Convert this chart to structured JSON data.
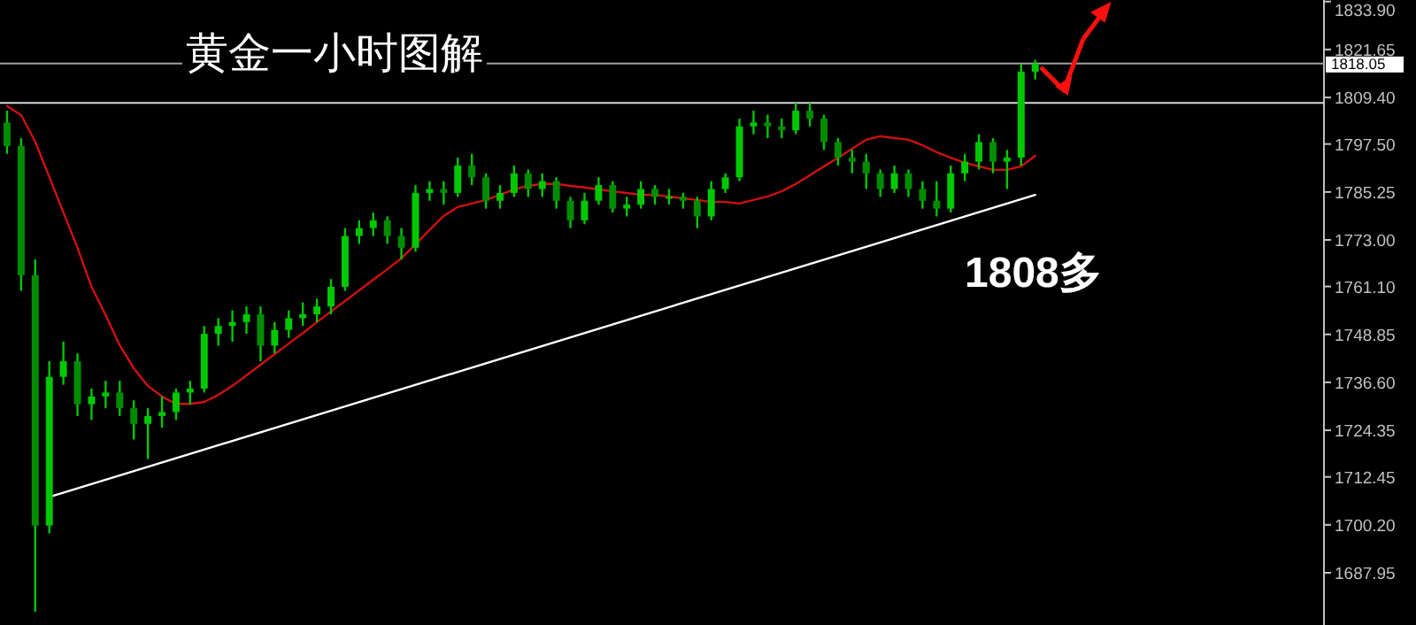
{
  "chart_data": {
    "type": "candlestick",
    "title": "黄金一小时图解",
    "annotations": [
      "1808多"
    ],
    "categories": [
      null,
      null,
      null,
      null,
      null,
      null,
      null,
      null,
      null,
      null,
      null,
      null,
      null,
      null,
      null,
      null,
      null,
      null,
      null,
      null,
      null,
      null,
      null,
      null,
      null,
      null,
      null,
      null,
      null,
      null,
      null,
      null,
      null,
      null,
      null,
      null,
      null,
      null,
      null,
      null,
      null,
      null,
      null,
      null,
      null,
      null,
      null,
      null,
      null,
      null,
      null,
      null,
      null,
      null,
      null,
      null,
      null,
      null,
      null,
      null,
      null,
      null,
      null,
      null,
      null,
      null,
      null,
      null,
      null,
      null,
      null,
      null,
      null,
      null
    ],
    "color": "#00c800",
    "colors": [
      "#008c00",
      "#008c00",
      "#008c00",
      "#00c800",
      "#00c800",
      "#008c00",
      "#00c800",
      "#00c800",
      "#008c00",
      "#008c00",
      "#00c800",
      "#00c800",
      "#00c800",
      "#00c800",
      "#00c800",
      "#00c800",
      "#00c800",
      "#00c800",
      "#008c00",
      "#00c800",
      "#00c800",
      "#00c800",
      "#00c800",
      "#00c800",
      "#00c800",
      "#00c800",
      "#00c800",
      "#008c00",
      "#008c00",
      "#00c800",
      "#00c800",
      "#008c00",
      "#00c800",
      "#008c00",
      "#008c00",
      "#00c800",
      "#00c800",
      "#008c00",
      "#00c800",
      "#008c00",
      "#008c00",
      "#00c800",
      "#00c800",
      "#008c00",
      "#00c800",
      "#00c800",
      "#008c00",
      "#00c800",
      "#008c00",
      "#008c00",
      "#00c800",
      "#00c800",
      "#00c800",
      "#00c800",
      "#008c00",
      "#008c00",
      "#00c800",
      "#008c00",
      "#008c00",
      "#008c00",
      "#008c00",
      "#008c00",
      "#008c00",
      "#00c800",
      "#008c00",
      "#008c00",
      "#008c00",
      "#00c800",
      "#00c800",
      "#00c800",
      "#008c00",
      "#00c800",
      "#00c800",
      "#00c800"
    ],
    "ohlc": [
      [
        1803,
        1806,
        1795,
        1797
      ],
      [
        1797,
        1799,
        1760,
        1764
      ],
      [
        1764,
        1768,
        1678,
        1700
      ],
      [
        1700,
        1742,
        1698,
        1738
      ],
      [
        1738,
        1747,
        1736,
        1742
      ],
      [
        1742,
        1744,
        1728,
        1731
      ],
      [
        1731,
        1735,
        1727,
        1733
      ],
      [
        1733,
        1737,
        1730,
        1734
      ],
      [
        1734,
        1737,
        1728,
        1730
      ],
      [
        1730,
        1732,
        1722,
        1726
      ],
      [
        1726,
        1730,
        1717,
        1728
      ],
      [
        1728,
        1733,
        1725,
        1729
      ],
      [
        1729,
        1735,
        1727,
        1734
      ],
      [
        1734,
        1737,
        1731,
        1735
      ],
      [
        1735,
        1751,
        1734,
        1749
      ],
      [
        1749,
        1753,
        1746,
        1751
      ],
      [
        1751,
        1755,
        1747,
        1752
      ],
      [
        1752,
        1756,
        1749,
        1754
      ],
      [
        1754,
        1756,
        1742,
        1746
      ],
      [
        1746,
        1752,
        1744,
        1750
      ],
      [
        1750,
        1755,
        1748,
        1753
      ],
      [
        1753,
        1757,
        1751,
        1754
      ],
      [
        1754,
        1758,
        1752,
        1756
      ],
      [
        1756,
        1763,
        1754,
        1761
      ],
      [
        1761,
        1776,
        1760,
        1774
      ],
      [
        1774,
        1778,
        1772,
        1776
      ],
      [
        1776,
        1780,
        1774,
        1778
      ],
      [
        1778,
        1779,
        1772,
        1774
      ],
      [
        1774,
        1776,
        1768,
        1771
      ],
      [
        1771,
        1787,
        1770,
        1785
      ],
      [
        1785,
        1788,
        1783,
        1786
      ],
      [
        1786,
        1788,
        1782,
        1785
      ],
      [
        1785,
        1794,
        1784,
        1792
      ],
      [
        1792,
        1795,
        1787,
        1789
      ],
      [
        1789,
        1790,
        1781,
        1783
      ],
      [
        1783,
        1787,
        1781,
        1785
      ],
      [
        1785,
        1792,
        1784,
        1790
      ],
      [
        1790,
        1791,
        1784,
        1786
      ],
      [
        1786,
        1790,
        1784,
        1788
      ],
      [
        1788,
        1789,
        1781,
        1783
      ],
      [
        1783,
        1784,
        1776,
        1778
      ],
      [
        1778,
        1785,
        1777,
        1783
      ],
      [
        1783,
        1789,
        1782,
        1787
      ],
      [
        1787,
        1788,
        1780,
        1781
      ],
      [
        1781,
        1784,
        1779,
        1782
      ],
      [
        1782,
        1788,
        1781,
        1786
      ],
      [
        1786,
        1787,
        1782,
        1784
      ],
      [
        1784,
        1786,
        1782,
        1784
      ],
      [
        1784,
        1785,
        1781,
        1783
      ],
      [
        1783,
        1784,
        1776,
        1779
      ],
      [
        1779,
        1788,
        1778,
        1786
      ],
      [
        1786,
        1790,
        1785,
        1789
      ],
      [
        1789,
        1804,
        1788,
        1802
      ],
      [
        1802,
        1806,
        1800,
        1803
      ],
      [
        1803,
        1805,
        1799,
        1802
      ],
      [
        1802,
        1804,
        1799,
        1801
      ],
      [
        1801,
        1808,
        1800,
        1806
      ],
      [
        1806,
        1808,
        1802,
        1804
      ],
      [
        1804,
        1805,
        1796,
        1798
      ],
      [
        1798,
        1799,
        1792,
        1794
      ],
      [
        1794,
        1796,
        1790,
        1793
      ],
      [
        1793,
        1795,
        1786,
        1790
      ],
      [
        1790,
        1791,
        1784,
        1786
      ],
      [
        1786,
        1792,
        1785,
        1790
      ],
      [
        1790,
        1791,
        1784,
        1786
      ],
      [
        1786,
        1788,
        1781,
        1783
      ],
      [
        1783,
        1788,
        1779,
        1781
      ],
      [
        1781,
        1792,
        1780,
        1790
      ],
      [
        1790,
        1795,
        1788,
        1793
      ],
      [
        1793,
        1800,
        1791,
        1798
      ],
      [
        1798,
        1799,
        1790,
        1793
      ],
      [
        1793,
        1796,
        1786,
        1794
      ],
      [
        1794,
        1818,
        1792,
        1816
      ],
      [
        1816,
        1819,
        1814,
        1818
      ]
    ],
    "series": [
      {
        "type": "line",
        "color": "#d01010",
        "values": [
          1807.2,
          1804.9,
          1798.1,
          1789.1,
          1780.0,
          1771.0,
          1761.0,
          1753.8,
          1746.1,
          1740.2,
          1735.7,
          1733.0,
          1731.1,
          1731.1,
          1731.6,
          1733.4,
          1735.7,
          1738.4,
          1741.1,
          1743.8,
          1746.5,
          1749.2,
          1752.0,
          1754.7,
          1757.4,
          1760.1,
          1762.8,
          1765.5,
          1768.3,
          1771.9,
          1775.5,
          1779.1,
          1781.4,
          1782.3,
          1783.2,
          1784.5,
          1785.9,
          1786.8,
          1787.3,
          1787.3,
          1786.8,
          1786.4,
          1785.9,
          1785.4,
          1785.0,
          1784.5,
          1784.5,
          1784.1,
          1783.6,
          1783.2,
          1782.7,
          1782.7,
          1782.3,
          1783.2,
          1784.1,
          1785.4,
          1787.3,
          1789.5,
          1791.8,
          1794.0,
          1796.3,
          1798.6,
          1799.5,
          1799.0,
          1798.6,
          1797.2,
          1795.4,
          1794.0,
          1792.7,
          1791.8,
          1790.9,
          1790.9,
          1791.8,
          1794.5
        ]
      },
      {
        "type": "line",
        "color": "#ffffff",
        "values": [
          null,
          null,
          null,
          1707.3,
          null,
          null,
          null,
          null,
          null,
          null,
          null,
          null,
          null,
          null,
          null,
          null,
          null,
          null,
          null,
          null,
          null,
          null,
          null,
          null,
          null,
          null,
          null,
          null,
          null,
          null,
          null,
          null,
          null,
          null,
          null,
          null,
          null,
          null,
          null,
          null,
          null,
          null,
          null,
          null,
          null,
          null,
          null,
          null,
          null,
          null,
          null,
          null,
          null,
          null,
          null,
          null,
          null,
          null,
          null,
          null,
          null,
          null,
          null,
          null,
          null,
          null,
          null,
          null,
          null,
          null,
          null,
          null,
          null,
          1784.5
        ]
      }
    ],
    "ref_lines": [
      {
        "axis": "y",
        "value": 1818.05,
        "label": "1818.05",
        "color": "#a0a0a0"
      },
      {
        "axis": "y",
        "value": 1808,
        "color": "#d8d8d8"
      }
    ],
    "ylim": [
      1674.6,
      1834.3
    ],
    "yticks": [
      {
        "value": 1833.9,
        "label": "1833.90"
      },
      1821.65,
      {
        "value": 1809.4,
        "label": "1809.40"
      },
      {
        "value": 1797.5,
        "label": "1797.50"
      },
      1785.25,
      {
        "value": 1773.0,
        "label": "1773.00"
      },
      {
        "value": 1761.1,
        "label": "1761.10"
      },
      1748.85,
      {
        "value": 1736.6,
        "label": "1736.60"
      },
      1724.35,
      1712.45,
      {
        "value": 1700.2,
        "label": "1700.20"
      },
      1687.95
    ],
    "tick_labels": "y",
    "grid": false
  }
}
